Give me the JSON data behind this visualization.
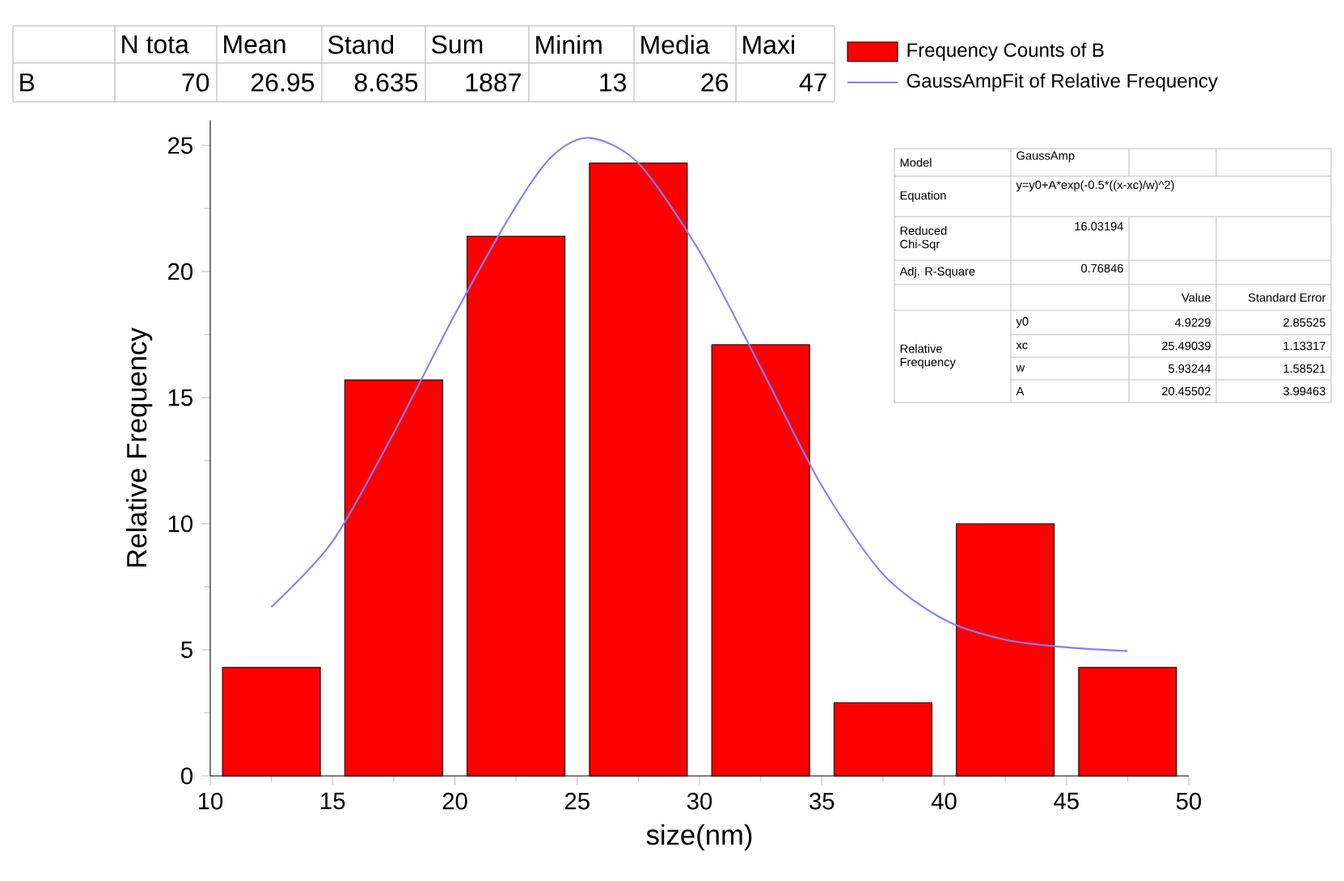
{
  "chart_data": {
    "type": "histogram",
    "xlabel": "size(nm)",
    "ylabel": "Relative Frequency",
    "bins": [
      10,
      15,
      20,
      25,
      30,
      35,
      40,
      45,
      50
    ],
    "series": [
      {
        "name": "Frequency Counts of B",
        "color": "#ff0000",
        "values": [
          4.3,
          15.7,
          21.4,
          24.3,
          17.1,
          2.9,
          10.0,
          4.3
        ]
      },
      {
        "name": "GaussAmpFit of Relative Frequency",
        "type": "line",
        "color": "#8080ff",
        "x": [
          12.5,
          15,
          17.5,
          20,
          22.5,
          24,
          25.5,
          27.5,
          30,
          32.5,
          35,
          37.5,
          40,
          42.5,
          45,
          47.5
        ],
        "values": [
          6.7,
          9.3,
          13.6,
          18.3,
          22.6,
          24.6,
          25.3,
          24.3,
          20.8,
          16.2,
          11.5,
          8.0,
          6.2,
          5.4,
          5.1,
          4.95
        ]
      }
    ],
    "xlim": [
      10,
      50
    ],
    "ylim": [
      0,
      26
    ],
    "xticks": [
      10,
      15,
      20,
      25,
      30,
      35,
      40,
      45,
      50
    ],
    "yticks": [
      0,
      5,
      10,
      15,
      20,
      25
    ],
    "legend": "top right",
    "annotations": [
      "N tota",
      "Mean",
      "Stand",
      "Sum",
      "Minim",
      "Media",
      "Maxi",
      "B",
      "70",
      "26.95",
      "8.635",
      "1887",
      "13",
      "26",
      "47",
      "Model",
      "GaussAmp",
      "Equation",
      "y=y0+A*exp(-0.5*((x-xc)/w)^2)",
      "Reduced Chi-Sqr",
      "16.03194",
      "Adj. R-Square",
      "0.76846",
      "Value",
      "Standard Error",
      "Relative Frequency",
      "y0",
      "4.9229",
      "2.85525",
      "xc",
      "25.49039",
      "1.13317",
      "w",
      "5.93244",
      "1.58521",
      "A",
      "20.45502",
      "3.99463"
    ]
  }
}
